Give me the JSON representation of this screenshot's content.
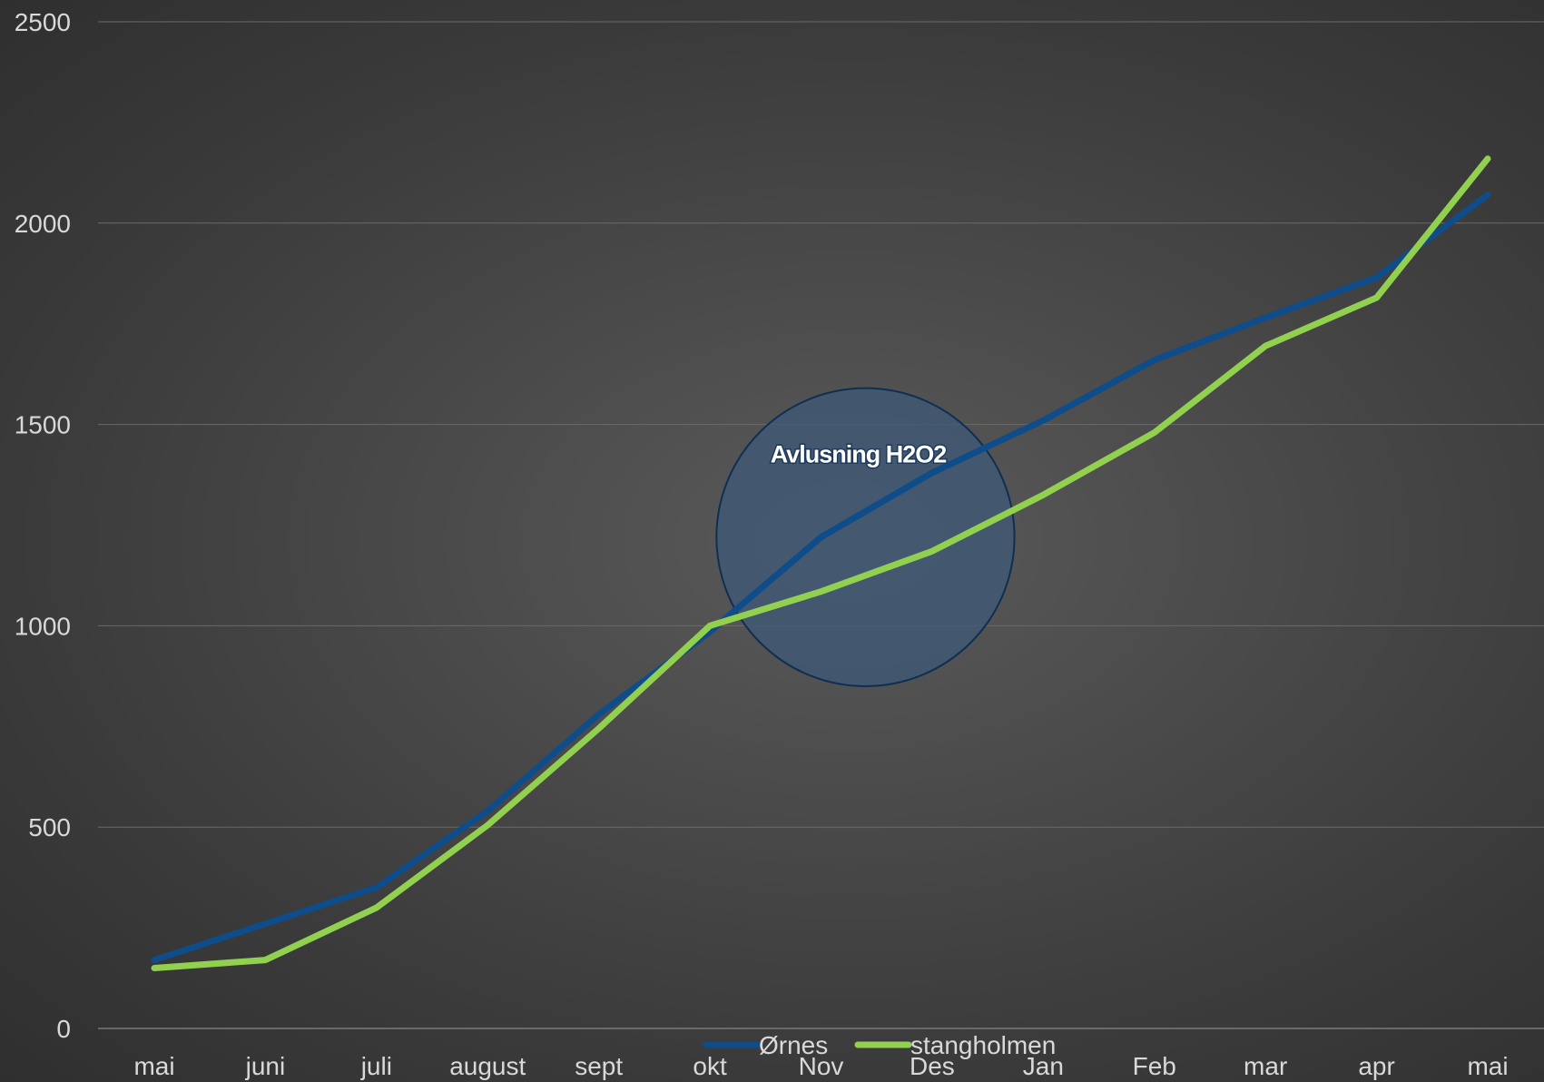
{
  "chart_data": {
    "type": "line",
    "title": "",
    "xlabel": "",
    "ylabel": "",
    "categories": [
      "mai",
      "juni",
      "juli",
      "august",
      "sept",
      "okt",
      "Nov",
      "Des",
      "Jan",
      "Feb",
      "mar",
      "apr",
      "mai"
    ],
    "ylim": [
      0,
      2500
    ],
    "yticks": [
      0,
      500,
      1000,
      1500,
      2000,
      2500
    ],
    "grid": true,
    "legend_position": "bottom",
    "series": [
      {
        "name": "Ørnes",
        "color": "#0f4c8a",
        "values": [
          170,
          260,
          350,
          540,
          780,
          985,
          1220,
          1380,
          1510,
          1660,
          1765,
          1865,
          2070
        ]
      },
      {
        "name": "stangholmen",
        "color": "#92d050",
        "values": [
          150,
          170,
          300,
          505,
          745,
          1000,
          1085,
          1185,
          1325,
          1480,
          1695,
          1815,
          2160
        ]
      }
    ],
    "annotations": [
      {
        "text": "Avlusning H2O2",
        "shape": "circle",
        "fill": "#3d5a78",
        "stroke": "#0f2f52",
        "center_category_index": 6.4,
        "center_value": 1220,
        "radius_value": 370
      }
    ]
  }
}
